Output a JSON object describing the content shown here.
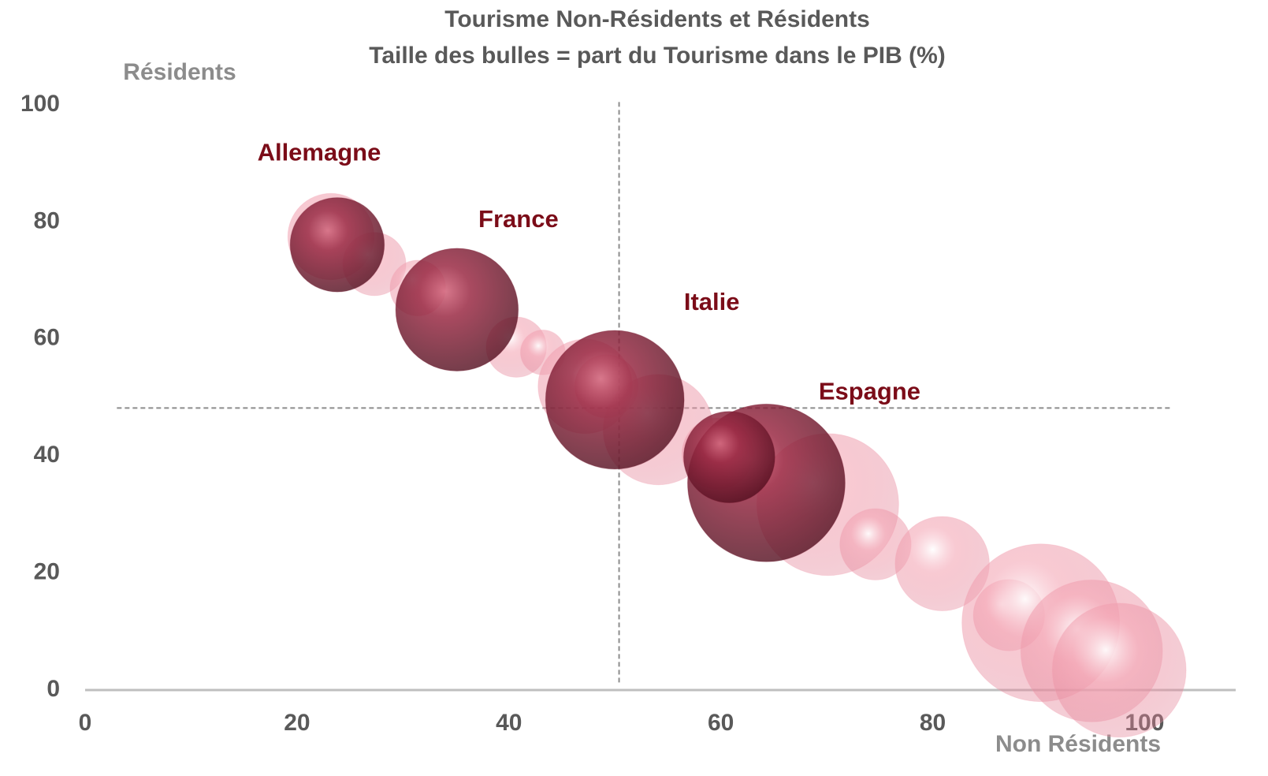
{
  "chart_data": {
    "type": "bubble",
    "title": "Tourisme Non-Résidents et Résidents",
    "subtitle": "Taille des bulles =  part du Tourisme dans le PIB (%)",
    "x_label": "Non Résidents",
    "y_label": "Résidents",
    "xlim": [
      0,
      108.6
    ],
    "ylim": [
      0,
      100
    ],
    "xticks": [
      0,
      20,
      40,
      60,
      80,
      100
    ],
    "yticks": [
      0,
      20,
      40,
      60,
      80,
      100
    ],
    "vline": {
      "x": 50.4,
      "yrange": [
        1.3,
        100.8
      ]
    },
    "hline": {
      "y": 48.2,
      "xrange": [
        3,
        102.5
      ]
    },
    "series": [
      {
        "color": "#f4a6b5",
        "x": [
          23.2,
          27.3,
          31.4,
          40.7,
          43.2,
          47.2,
          49.2,
          54.1,
          59.7,
          70.1,
          74.6,
          80.9,
          87.2,
          90.2,
          95.0,
          97.6
        ],
        "values": [
          77.5,
          72.8,
          68.7,
          58.6,
          57.7,
          51.9,
          51.9,
          44.5,
          40.4,
          31.7,
          24.9,
          21.6,
          12.8,
          11.5,
          6.7,
          3.4
        ],
        "sizes": [
          4.1,
          2.2,
          1.7,
          2.0,
          1.1,
          4.9,
          2.2,
          6.7,
          2.8,
          11.1,
          2.8,
          4.9,
          2.8,
          13.7,
          11.1,
          9.9
        ]
      },
      {
        "color": "#7a1a32",
        "x": [
          23.8,
          35.1,
          50.0,
          64.3,
          60.8
        ],
        "values": [
          76.1,
          65.0,
          49.6,
          35.4,
          39.8
        ],
        "sizes": [
          4.9,
          8.3,
          10.6,
          13.7,
          4.6
        ],
        "labels": [
          "Allemagne",
          "France",
          "Italie",
          "Espagne",
          null
        ]
      }
    ]
  }
}
